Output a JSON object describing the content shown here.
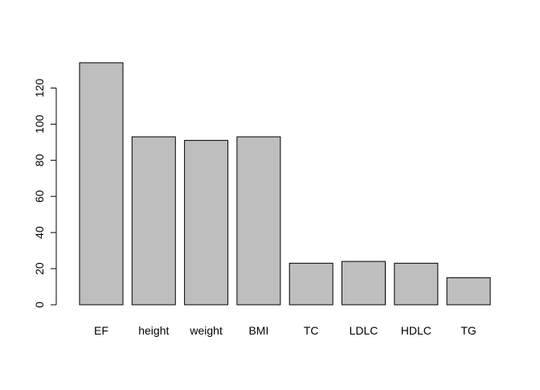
{
  "chart_data": {
    "type": "bar",
    "categories": [
      "EF",
      "height",
      "weight",
      "BMI",
      "TC",
      "LDLC",
      "HDLC",
      "TG"
    ],
    "values": [
      134,
      93,
      91,
      93,
      23,
      24,
      23,
      15
    ],
    "title": "",
    "xlabel": "",
    "ylabel": "",
    "ylim": [
      0,
      134
    ],
    "yticks": [
      0,
      20,
      40,
      60,
      80,
      100,
      120
    ],
    "bar_fill": "#bebebe",
    "bar_stroke": "#000000",
    "grid": false,
    "legend": "none"
  }
}
